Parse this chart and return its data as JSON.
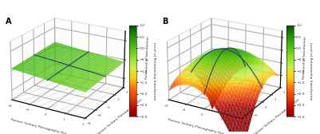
{
  "title_A": "A",
  "title_B": "B",
  "xlabel": "Partner Solitary Pornography Use",
  "ylabel_A": "Partner Solitary Pornography Use",
  "ylabel_B": "Partner Solitary Pornography Use",
  "zlabel": "Relationship Satisfaction",
  "colorbar_label": "Level of Relationship Satisfaction",
  "x_range": [
    -2,
    2
  ],
  "y_range": [
    -2,
    2
  ],
  "colorbar_ticks": [
    1.0,
    0.5,
    0.0,
    -0.5,
    -1.0,
    -1.5,
    -2.0,
    -2.5,
    -3.0
  ],
  "cmap_colors": [
    [
      0.0,
      "#8b0000"
    ],
    [
      0.08,
      "#bb0000"
    ],
    [
      0.18,
      "#dd3300"
    ],
    [
      0.3,
      "#ff6600"
    ],
    [
      0.42,
      "#ffcc00"
    ],
    [
      0.54,
      "#ccee44"
    ],
    [
      0.66,
      "#88dd22"
    ],
    [
      0.78,
      "#44bb11"
    ],
    [
      0.9,
      "#228800"
    ],
    [
      1.0,
      "#005500"
    ]
  ],
  "surface_alpha": 0.9,
  "bg_color": "#ffffff",
  "pane_color": "#f8f8f8",
  "edge_color": "#aaaaaa",
  "line_color": "#2a3f6e",
  "contour_color": "#888888",
  "elev_A": 22,
  "azim_A": -60,
  "elev_B": 22,
  "azim_B": -60,
  "zticks_A": [
    -1,
    0,
    1
  ],
  "zticks_B": [
    -2,
    -1,
    0,
    1
  ],
  "zlim_A": [
    -1.5,
    1.5
  ],
  "zlim_B": [
    -3.0,
    1.5
  ]
}
